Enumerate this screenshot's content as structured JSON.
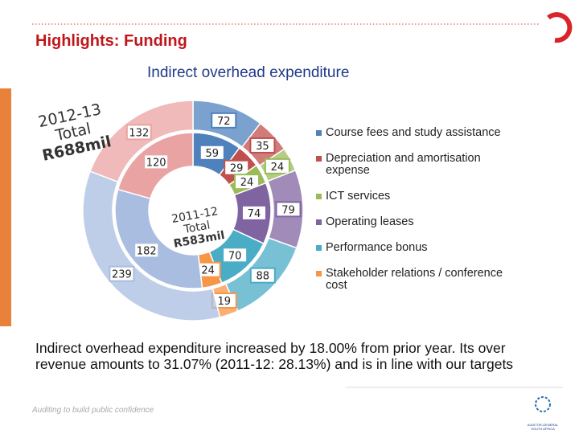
{
  "header": {
    "title": "Highlights: Funding"
  },
  "chart_data": {
    "type": "donut",
    "title": "Indirect overhead expenditure",
    "categories": [
      "Course fees and study assistance",
      "Depreciation  and amortisation expense",
      "ICT services",
      "Operating leases",
      "Performance bonus",
      "Stakeholder relations / conference cost",
      null,
      null
    ],
    "colors": [
      "#4f81bd",
      "#c0504d",
      "#9bbb59",
      "#8064a2",
      "#4bacc6",
      "#f79646",
      "#a9bde0",
      "#e9a3a2"
    ],
    "series": [
      {
        "values": [
          59,
          29,
          24,
          74,
          70,
          24,
          182,
          120
        ]
      },
      {
        "values": [
          72,
          35,
          24,
          79,
          88,
          19,
          239,
          132
        ]
      }
    ],
    "annotations": [
      {
        "lines": [
          "2012-13",
          "Total",
          "R688mil"
        ]
      },
      {
        "lines": [
          "2011-12",
          "Total",
          "R583mil"
        ]
      }
    ]
  },
  "body": {
    "text": "Indirect overhead expenditure increased by 18.00% from prior year. Its over revenue amounts to 31.07% (2011-12: 28.13%) and is in line with our targets"
  },
  "footer": {
    "tagline": "Auditing to build public confidence",
    "logo": [
      "AUDITOR-GENERAL",
      "SOUTH AFRICA"
    ]
  }
}
